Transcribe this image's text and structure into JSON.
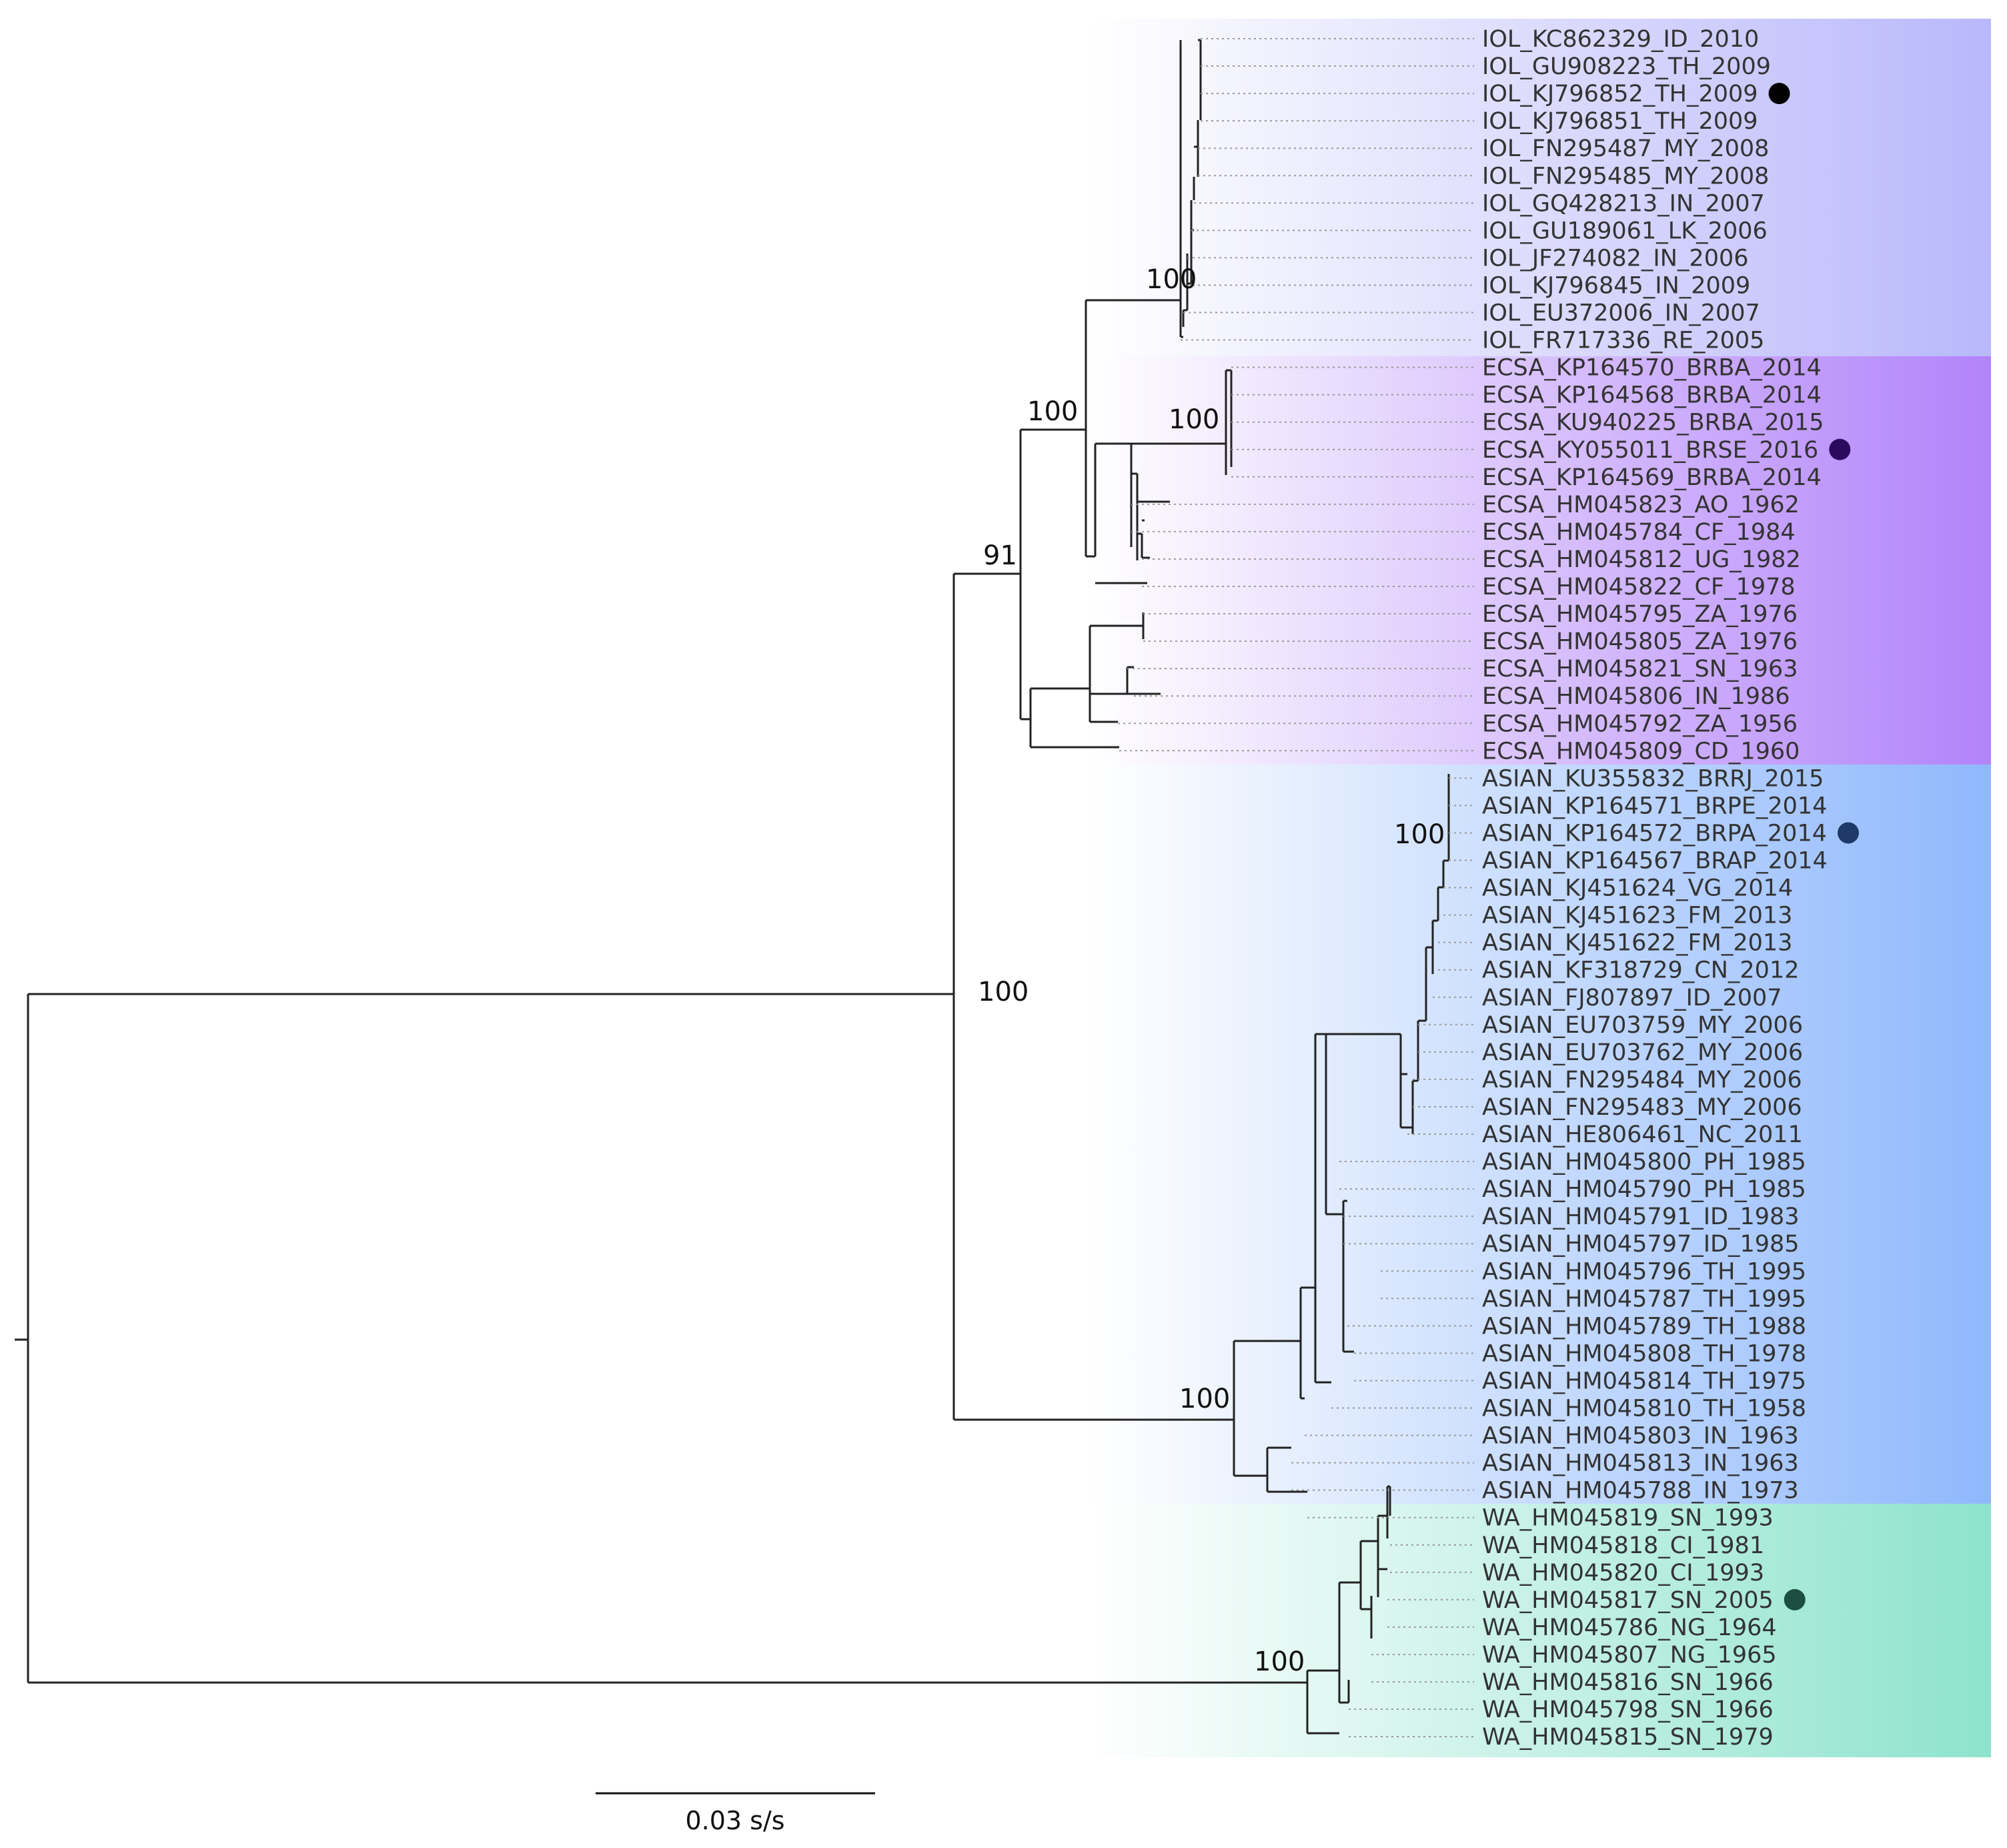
{
  "chart_data": {
    "type": "phylogenetic-tree",
    "scale_bar": {
      "value": 0.03,
      "label": "0.03 s/s"
    },
    "clades": [
      {
        "name": "IOL",
        "color": "#b9b8fb",
        "tips": [
          "IOL_KC862329_ID_2010",
          "IOL_GU908223_TH_2009",
          "IOL_KJ796852_TH_2009",
          "IOL_KJ796851_TH_2009",
          "IOL_FN295487_MY_2008",
          "IOL_FN295485_MY_2008",
          "IOL_GQ428213_IN_2007",
          "IOL_GU189061_LK_2006",
          "IOL_JF274082_IN_2006",
          "IOL_KJ796845_IN_2009",
          "IOL_EU372006_IN_2007",
          "IOL_FR717336_RE_2005"
        ]
      },
      {
        "name": "ECSA",
        "color": "#b283fa",
        "tips": [
          "ECSA_KP164570_BRBA_2014",
          "ECSA_KP164568_BRBA_2014",
          "ECSA_KU940225_BRBA_2015",
          "ECSA_KY055011_BRSE_2016",
          "ECSA_KP164569_BRBA_2014",
          "ECSA_HM045823_AO_1962",
          "ECSA_HM045784_CF_1984",
          "ECSA_HM045812_UG_1982",
          "ECSA_HM045822_CF_1978",
          "ECSA_HM045795_ZA_1976",
          "ECSA_HM045805_ZA_1976",
          "ECSA_HM045821_SN_1963",
          "ECSA_HM045806_IN_1986",
          "ECSA_HM045792_ZA_1956",
          "ECSA_HM045809_CD_1960"
        ]
      },
      {
        "name": "ASIAN",
        "color": "#8fb8fc",
        "tips": [
          "ASIAN_KU355832_BRRJ_2015",
          "ASIAN_KP164571_BRPE_2014",
          "ASIAN_KP164572_BRPA_2014",
          "ASIAN_KP164567_BRAP_2014",
          "ASIAN_KJ451624_VG_2014",
          "ASIAN_KJ451623_FM_2013",
          "ASIAN_KJ451622_FM_2013",
          "ASIAN_KF318729_CN_2012",
          "ASIAN_FJ807897_ID_2007",
          "ASIAN_EU703759_MY_2006",
          "ASIAN_EU703762_MY_2006",
          "ASIAN_FN295484_MY_2006",
          "ASIAN_FN295483_MY_2006",
          "ASIAN_HE806461_NC_2011",
          "ASIAN_HM045800_PH_1985",
          "ASIAN_HM045790_PH_1985",
          "ASIAN_HM045791_ID_1983",
          "ASIAN_HM045797_ID_1985",
          "ASIAN_HM045796_TH_1995",
          "ASIAN_HM045787_TH_1995",
          "ASIAN_HM045789_TH_1988",
          "ASIAN_HM045808_TH_1978",
          "ASIAN_HM045814_TH_1975",
          "ASIAN_HM045810_TH_1958",
          "ASIAN_HM045803_IN_1963",
          "ASIAN_HM045813_IN_1963",
          "ASIAN_HM045788_IN_1973"
        ]
      },
      {
        "name": "WA",
        "color": "#8ee3cd",
        "tips": [
          "WA_HM045819_SN_1993",
          "WA_HM045818_CI_1981",
          "WA_HM045820_CI_1993",
          "WA_HM045817_SN_2005",
          "WA_HM045786_NG_1964",
          "WA_HM045807_NG_1965",
          "WA_HM045816_SN_1966",
          "WA_HM045798_SN_1966",
          "WA_HM045815_SN_1979"
        ]
      }
    ],
    "highlighted_tips": [
      {
        "tip": "IOL_KJ796852_TH_2009",
        "color": "#000000"
      },
      {
        "tip": "ECSA_KY055011_BRSE_2016",
        "color": "#2b0a5e"
      },
      {
        "tip": "ASIAN_KP164572_BRPA_2014",
        "color": "#1f3a68"
      },
      {
        "tip": "WA_HM045817_SN_2005",
        "color": "#1b4f3f"
      }
    ],
    "bootstrap": [
      {
        "node": "IOL",
        "value": "100"
      },
      {
        "node": "IOL+ECSA",
        "value": "100"
      },
      {
        "node": "ECSA-Brazil",
        "value": "100"
      },
      {
        "node": "IOL+ECSA-all",
        "value": "91"
      },
      {
        "node": "Asian/ECSA/IOL",
        "value": "100"
      },
      {
        "node": "ASIAN-recent",
        "value": "100"
      },
      {
        "node": "ASIAN",
        "value": "100"
      },
      {
        "node": "WA",
        "value": "100"
      }
    ]
  }
}
